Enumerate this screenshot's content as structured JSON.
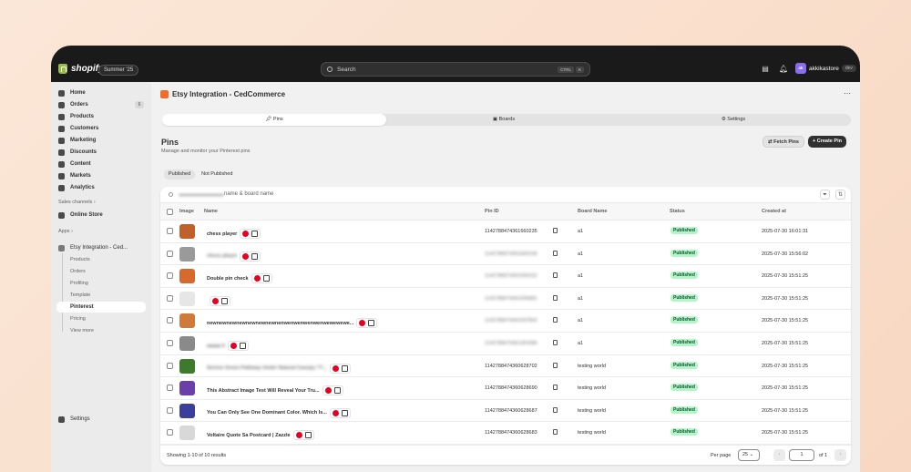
{
  "topbar": {
    "brand": "shopify",
    "edition": "Summer '25",
    "search_label": "Search",
    "shortcut_keys": [
      "CTRL",
      "K"
    ],
    "store_initials": "ak",
    "store_name": "akkikastore",
    "store_tag": "dev"
  },
  "sidebar": {
    "items": [
      {
        "label": "Home",
        "icon": "home-icon"
      },
      {
        "label": "Orders",
        "icon": "orders-icon",
        "count": "6"
      },
      {
        "label": "Products",
        "icon": "tag-icon"
      },
      {
        "label": "Customers",
        "icon": "person-icon"
      },
      {
        "label": "Marketing",
        "icon": "target-icon"
      },
      {
        "label": "Discounts",
        "icon": "discount-icon"
      },
      {
        "label": "Content",
        "icon": "content-icon"
      },
      {
        "label": "Markets",
        "icon": "globe-icon"
      },
      {
        "label": "Analytics",
        "icon": "chart-icon"
      }
    ],
    "sales_channels_label": "Sales channels",
    "online_store": "Online Store",
    "apps_label": "Apps",
    "app_name": "Etsy Integration - Ced...",
    "app_sub_items": [
      "Products",
      "Orders",
      "Profiling",
      "Template",
      "Pinterest",
      "Pricing",
      "View more"
    ],
    "active_sub_item": "Pinterest",
    "settings": "Settings"
  },
  "main": {
    "app_title": "Etsy Integration - CedCommerce",
    "tabs": [
      "Pins",
      "Boards",
      "Settings"
    ],
    "page_title": "Pins",
    "page_subtitle": "Manage and monitor your Pinterest pins",
    "fetch_button": "Fetch Pins",
    "create_button": "Create Pin",
    "filters": [
      "Published",
      "Not Published"
    ],
    "search_placeholder": "name & board name",
    "columns": [
      "Image",
      "Name",
      "Pin ID",
      "Board Name",
      "Status",
      "Created at"
    ],
    "rows": [
      {
        "name": "chess player",
        "pin_id": "1142788474361660235",
        "board": "a1",
        "status": "Published",
        "created": "2025-07-30 16:01:31",
        "thumb": "#c0602a",
        "blur_name": false,
        "blur_id": false
      },
      {
        "name": "chess player",
        "pin_id": "1142788474361660136",
        "board": "a1",
        "status": "Published",
        "created": "2025-07-30 15:56:02",
        "thumb": "#9a9a9a",
        "blur_name": true,
        "blur_id": true
      },
      {
        "name": "Double pin check",
        "pin_id": "1142788474361599152",
        "board": "a1",
        "status": "Published",
        "created": "2025-07-30 15:51:25",
        "thumb": "#d46a2e",
        "blur_name": false,
        "blur_id": true
      },
      {
        "name": "",
        "pin_id": "1142788474361599481",
        "board": "a1",
        "status": "Published",
        "created": "2025-07-30 15:51:25",
        "thumb": "#e6e6e6",
        "blur_name": true,
        "blur_id": true
      },
      {
        "name": "newnewnewnewnewnewnewnenwenwenwenwenwewewewe...",
        "pin_id": "1142788474361597803",
        "board": "a1",
        "status": "Published",
        "created": "2025-07-30 15:51:25",
        "thumb": "#cf7a3a",
        "blur_name": false,
        "blur_id": true
      },
      {
        "name": "aaaaa ll",
        "pin_id": "1142788474361301586",
        "board": "a1",
        "status": "Published",
        "created": "2025-07-30 15:51:25",
        "thumb": "#8a8a8a",
        "blur_name": true,
        "blur_id": true
      },
      {
        "name": "Serene Green Pathway Under Natural Canopy ??...",
        "pin_id": "1142788474360628702",
        "board": "testing world",
        "status": "Published",
        "created": "2025-07-30 15:51:25",
        "thumb": "#3e7a2c",
        "blur_name": true,
        "blur_id": false
      },
      {
        "name": "This Abstract Image Test Will Reveal Your Tru...",
        "pin_id": "1142788474360628690",
        "board": "testing world",
        "status": "Published",
        "created": "2025-07-30 15:51:25",
        "thumb": "#6a3fa8",
        "blur_name": false,
        "blur_id": false
      },
      {
        "name": "You Can Only See One Dominant Color. Which Is...",
        "pin_id": "1142788474360628687",
        "board": "testing world",
        "status": "Published",
        "created": "2025-07-30 15:51:25",
        "thumb": "#3b3f9a",
        "blur_name": false,
        "blur_id": false
      },
      {
        "name": "Voltaire Quote Sa Postcard | Zazzle",
        "pin_id": "1142788474360628683",
        "board": "testing world",
        "status": "Published",
        "created": "2025-07-30 15:51:25",
        "thumb": "#d8d8d8",
        "blur_name": false,
        "blur_id": false
      }
    ],
    "showing_text": "Showing 1-10 of 10 results",
    "per_page_label": "Per page",
    "per_page_value": "25",
    "current_page": "1",
    "of_pages": "of 1"
  }
}
